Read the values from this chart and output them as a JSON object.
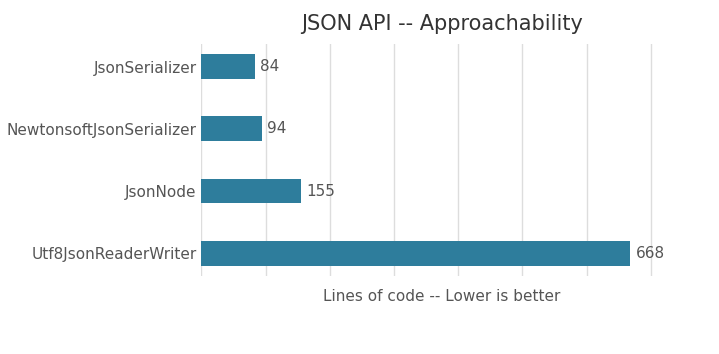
{
  "title": "JSON API -- Approachability",
  "categories": [
    "Utf8JsonReaderWriter",
    "JsonNode",
    "NewtonsoftJsonSerializer",
    "JsonSerializer"
  ],
  "values": [
    668,
    155,
    94,
    84
  ],
  "bar_color": "#2e7d9c",
  "xlabel": "Lines of code -- Lower is better",
  "xlim": [
    0,
    750
  ],
  "title_fontsize": 15,
  "label_fontsize": 11,
  "tick_fontsize": 11,
  "xlabel_fontsize": 11,
  "background_color": "#ffffff",
  "grid_color": "#dddddd",
  "bar_height": 0.4
}
